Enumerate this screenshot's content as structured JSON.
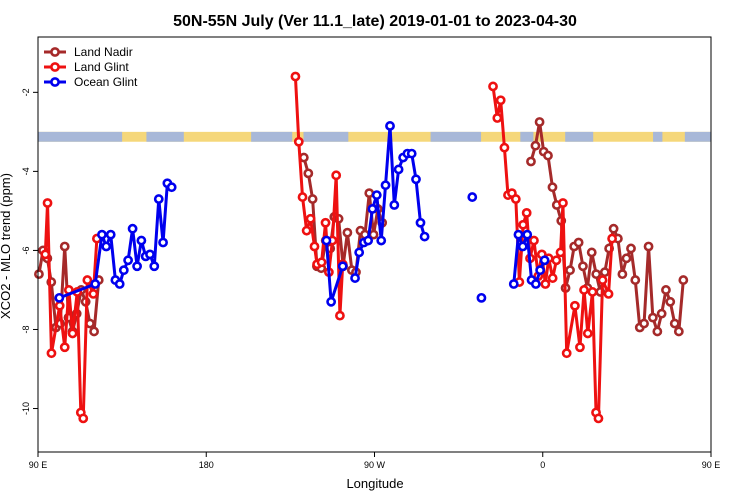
{
  "chart_data": {
    "type": "line",
    "title": "50N-55N July (Ver 11.1_late)   2019-01-01 to 2023-04-30",
    "xlabel": "Longitude",
    "ylabel": "XCO2 - MLO trend (ppm)",
    "xlim": [
      90,
      450
    ],
    "ylim": [
      -11.1,
      -0.6
    ],
    "x_ticks": [
      {
        "value": 90,
        "label": "90 E"
      },
      {
        "value": 180,
        "label": "180"
      },
      {
        "value": 270,
        "label": "90 W"
      },
      {
        "value": 360,
        "label": "0"
      },
      {
        "value": 450,
        "label": "90 E"
      },
      {
        "value": 540,
        "label": "180"
      }
    ],
    "y_ticks": [
      {
        "value": -2,
        "label": "-2"
      },
      {
        "value": -4,
        "label": "-4"
      },
      {
        "value": -6,
        "label": "-6"
      },
      {
        "value": -8,
        "label": "-8"
      },
      {
        "value": -10,
        "label": "-10"
      }
    ],
    "legend_position": "top-left",
    "landmask_band": {
      "y_range": [
        -3.0,
        -3.25
      ],
      "land_color": "#f5d77a",
      "ocean_color": "#a8b8d8"
    },
    "series": [
      {
        "name": "Land Nadir",
        "color": "#a52a2a",
        "segments": [
          [
            [
              90.5,
              -6.6
            ],
            [
              92.7,
              -6
            ],
            [
              95,
              -6.2
            ],
            [
              97.1,
              -6.8
            ],
            [
              99.6,
              -7.95
            ],
            [
              101.9,
              -7.85
            ],
            [
              104.3,
              -5.9
            ],
            [
              106.3,
              -7.7
            ],
            [
              108.5,
              -8.05
            ],
            [
              110.7,
              -7.6
            ],
            [
              113.1,
              -7
            ],
            [
              115.5,
              -7.3
            ],
            [
              117.8,
              -7.85
            ],
            [
              120,
              -8.05
            ],
            [
              122.5,
              -6.75
            ]
          ],
          [
            [
              232.2,
              -3.65
            ],
            [
              234.6,
              -4.05
            ],
            [
              236.9,
              -4.7
            ],
            [
              239.2,
              -6.4
            ],
            [
              241.5,
              -6.45
            ],
            [
              243.9,
              -5.75
            ],
            [
              246.3,
              -5.95
            ],
            [
              248.5,
              -5.15
            ],
            [
              250.8,
              -5.2
            ],
            [
              253.2,
              -6.4
            ],
            [
              255.5,
              -5.55
            ],
            [
              257.9,
              -6.5
            ],
            [
              260.1,
              -6.55
            ],
            [
              262.5,
              -5.5
            ],
            [
              264.9,
              -5.6
            ],
            [
              267.2,
              -4.55
            ],
            [
              269.5,
              -5.6
            ],
            [
              271.8,
              -4.95
            ],
            [
              274.1,
              -5.3
            ]
          ],
          [
            [
              353.7,
              -3.75
            ],
            [
              356.1,
              -3.35
            ],
            [
              358.3,
              -2.75
            ],
            [
              360.5,
              -3.5
            ],
            [
              362.8,
              -3.6
            ],
            [
              365.2,
              -4.4
            ],
            [
              367.5,
              -4.85
            ],
            [
              369.9,
              -5.25
            ],
            [
              372.2,
              -6.95
            ],
            [
              374.6,
              -6.5
            ],
            [
              376.8,
              -5.9
            ],
            [
              379.2,
              -5.8
            ],
            [
              381.5,
              -6.4
            ],
            [
              383.9,
              -6.95
            ],
            [
              386.2,
              -6.05
            ],
            [
              388.6,
              -6.6
            ],
            [
              390.8,
              -7.05
            ],
            [
              393.2,
              -6.55
            ],
            [
              395.5,
              -5.95
            ],
            [
              397.9,
              -5.45
            ],
            [
              400.2,
              -5.7
            ],
            [
              402.6,
              -6.6
            ],
            [
              404.8,
              -6.2
            ],
            [
              407.2,
              -5.95
            ],
            [
              409.5,
              -6.75
            ],
            [
              411.9,
              -7.95
            ],
            [
              414.2,
              -7.85
            ],
            [
              416.6,
              -5.9
            ],
            [
              418.9,
              -7.7
            ],
            [
              421.3,
              -8.05
            ],
            [
              423.6,
              -7.6
            ],
            [
              425.9,
              -7
            ],
            [
              428.2,
              -7.3
            ],
            [
              430.6,
              -7.85
            ],
            [
              432.8,
              -8.05
            ],
            [
              435.2,
              -6.75
            ]
          ]
        ]
      },
      {
        "name": "Land Glint",
        "color": "#ee1111",
        "segments": [
          [
            [
              93.9,
              -6.1
            ],
            [
              95.1,
              -4.8
            ],
            [
              97.2,
              -8.6
            ],
            [
              101.6,
              -7.4
            ],
            [
              104.3,
              -8.45
            ],
            [
              106.5,
              -7
            ],
            [
              108.5,
              -8.1
            ],
            [
              111,
              -7.05
            ],
            [
              112.9,
              -10.1
            ],
            [
              114.2,
              -10.25
            ],
            [
              116.4,
              -6.75
            ],
            [
              119.6,
              -7.1
            ],
            [
              121.5,
              -5.7
            ]
          ],
          [
            [
              227.7,
              -1.6
            ],
            [
              229.5,
              -3.25
            ],
            [
              231.5,
              -4.65
            ],
            [
              233.7,
              -5.5
            ],
            [
              235.8,
              -5.2
            ],
            [
              237.9,
              -5.9
            ],
            [
              239.3,
              -6.35
            ],
            [
              241.7,
              -6.3
            ],
            [
              243.8,
              -5.3
            ],
            [
              245.6,
              -6.55
            ],
            [
              247.5,
              -5.75
            ],
            [
              249.5,
              -4.1
            ],
            [
              251.5,
              -7.65
            ],
            [
              253,
              -6.35
            ]
          ],
          [
            [
              333.4,
              -1.85
            ],
            [
              335.7,
              -2.65
            ],
            [
              337.5,
              -2.2
            ],
            [
              339.5,
              -3.4
            ],
            [
              341.4,
              -4.6
            ],
            [
              343.5,
              -4.55
            ],
            [
              345.6,
              -4.7
            ],
            [
              347.5,
              -6.8
            ],
            [
              349.5,
              -5.35
            ],
            [
              351.4,
              -5.05
            ],
            [
              353.2,
              -6.2
            ],
            [
              355.3,
              -5.75
            ],
            [
              357.6,
              -6.65
            ],
            [
              359.5,
              -6.1
            ],
            [
              361.4,
              -6.85
            ],
            [
              363.2,
              -6.2
            ],
            [
              365.3,
              -6.7
            ],
            [
              367.3,
              -6.25
            ],
            [
              369.5,
              -6.05
            ],
            [
              370.8,
              -4.8
            ],
            [
              372.8,
              -8.6
            ],
            [
              377.2,
              -7.4
            ],
            [
              379.9,
              -8.45
            ],
            [
              382.1,
              -7
            ],
            [
              384.1,
              -8.1
            ],
            [
              386.6,
              -7.05
            ],
            [
              388.5,
              -10.1
            ],
            [
              389.8,
              -10.25
            ],
            [
              392,
              -6.75
            ],
            [
              395.2,
              -7.1
            ],
            [
              397.1,
              -5.7
            ]
          ]
        ]
      },
      {
        "name": "Ocean Glint",
        "color": "#0000ee",
        "segments": [
          [
            [
              101.4,
              -7.2
            ],
            [
              120.6,
              -6.85
            ],
            [
              124.2,
              -5.6
            ],
            [
              126.5,
              -5.9
            ],
            [
              128.9,
              -5.6
            ],
            [
              131.4,
              -6.75
            ],
            [
              133.7,
              -6.85
            ],
            [
              135.9,
              -6.5
            ],
            [
              138.2,
              -6.25
            ],
            [
              140.6,
              -5.45
            ],
            [
              143,
              -6.4
            ],
            [
              145.3,
              -5.75
            ],
            [
              147.6,
              -6.15
            ],
            [
              149.9,
              -6.1
            ],
            [
              152.2,
              -6.4
            ],
            [
              154.6,
              -4.7
            ],
            [
              156.9,
              -5.8
            ],
            [
              159.2,
              -4.3
            ],
            [
              161.5,
              -4.4
            ]
          ],
          [
            [
              244.3,
              -5.75
            ],
            [
              246.8,
              -7.3
            ],
            [
              253,
              -6.4
            ]
          ],
          [
            [
              259.6,
              -6.7
            ],
            [
              261.8,
              -6.05
            ],
            [
              264.3,
              -5.8
            ],
            [
              266.6,
              -5.75
            ],
            [
              268.9,
              -4.95
            ],
            [
              271.2,
              -4.6
            ],
            [
              273.6,
              -5.75
            ],
            [
              275.9,
              -4.35
            ],
            [
              278.3,
              -2.85
            ],
            [
              280.6,
              -4.85
            ],
            [
              282.9,
              -3.95
            ],
            [
              285.3,
              -3.65
            ],
            [
              287.6,
              -3.55
            ],
            [
              289.9,
              -3.55
            ],
            [
              292.2,
              -4.2
            ],
            [
              294.6,
              -5.3
            ],
            [
              296.8,
              -5.65
            ]
          ],
          [
            [
              322.3,
              -4.65
            ]
          ],
          [
            [
              327.2,
              -7.2
            ]
          ],
          [
            [
              344.5,
              -6.85
            ],
            [
              347,
              -5.6
            ],
            [
              349.3,
              -5.9
            ],
            [
              351.7,
              -5.6
            ],
            [
              354,
              -6.75
            ],
            [
              356.3,
              -6.85
            ],
            [
              358.6,
              -6.5
            ],
            [
              361,
              -6.25
            ]
          ]
        ]
      }
    ]
  }
}
